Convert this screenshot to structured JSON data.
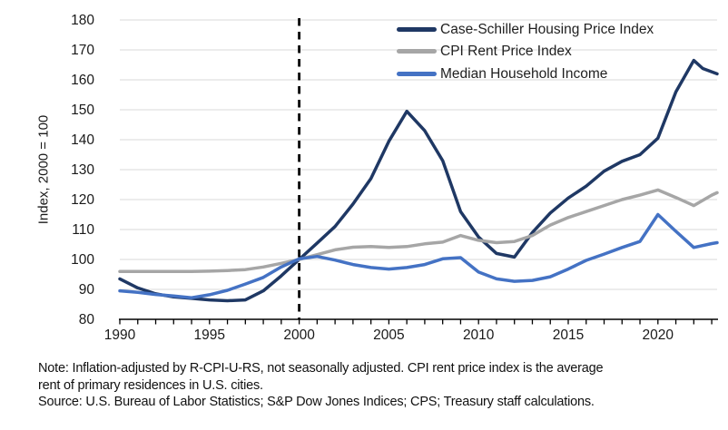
{
  "chart_data": {
    "type": "line",
    "title": "",
    "xlabel": "",
    "ylabel": "Index, 2000 = 100",
    "xlim": [
      1990,
      2023.3
    ],
    "ylim": [
      80,
      180
    ],
    "yticks": [
      80,
      90,
      100,
      110,
      120,
      130,
      140,
      150,
      160,
      170,
      180
    ],
    "xticks_labeled": [
      1990,
      1995,
      2000,
      2005,
      2010,
      2015,
      2020
    ],
    "xticks_minor_every": 1,
    "grid": "horizontal",
    "legend_position": "top-right-inside",
    "annotations": [
      {
        "type": "vline",
        "x": 2000,
        "style": "dashed",
        "color": "#000000"
      }
    ],
    "series": [
      {
        "name": "Case-Schiller Housing Price Index",
        "color": "#1F3864",
        "points": [
          [
            1990,
            93.5
          ],
          [
            1991,
            90.5
          ],
          [
            1992,
            88.5
          ],
          [
            1993,
            87.5
          ],
          [
            1994,
            87
          ],
          [
            1995,
            86.5
          ],
          [
            1996,
            86.2
          ],
          [
            1997,
            86.5
          ],
          [
            1998,
            89.5
          ],
          [
            1999,
            94.5
          ],
          [
            2000,
            100
          ],
          [
            2001,
            105.5
          ],
          [
            2002,
            111
          ],
          [
            2003,
            118.5
          ],
          [
            2004,
            127
          ],
          [
            2005,
            139.5
          ],
          [
            2006,
            149.5
          ],
          [
            2007,
            143
          ],
          [
            2008,
            133
          ],
          [
            2009,
            116
          ],
          [
            2010,
            107.5
          ],
          [
            2011,
            102
          ],
          [
            2012,
            100.8
          ],
          [
            2013,
            109
          ],
          [
            2014,
            115.5
          ],
          [
            2015,
            120.5
          ],
          [
            2016,
            124.5
          ],
          [
            2017,
            129.5
          ],
          [
            2018,
            132.8
          ],
          [
            2019,
            135
          ],
          [
            2020,
            140.5
          ],
          [
            2021,
            156
          ],
          [
            2022,
            166.5
          ],
          [
            2022.5,
            163.8
          ],
          [
            2023.3,
            162
          ]
        ]
      },
      {
        "name": "CPI Rent Price Index",
        "color": "#A6A6A6",
        "points": [
          [
            1990,
            96
          ],
          [
            1991,
            96
          ],
          [
            1992,
            96
          ],
          [
            1993,
            96
          ],
          [
            1994,
            96
          ],
          [
            1995,
            96.1
          ],
          [
            1996,
            96.3
          ],
          [
            1997,
            96.6
          ],
          [
            1998,
            97.5
          ],
          [
            1999,
            98.7
          ],
          [
            2000,
            100
          ],
          [
            2001,
            101.6
          ],
          [
            2002,
            103.2
          ],
          [
            2003,
            104.1
          ],
          [
            2004,
            104.3
          ],
          [
            2005,
            104
          ],
          [
            2006,
            104.3
          ],
          [
            2007,
            105.2
          ],
          [
            2008,
            105.8
          ],
          [
            2009,
            108
          ],
          [
            2010,
            106.4
          ],
          [
            2011,
            105.6
          ],
          [
            2012,
            106
          ],
          [
            2013,
            108
          ],
          [
            2014,
            111.5
          ],
          [
            2015,
            114
          ],
          [
            2016,
            116
          ],
          [
            2017,
            118
          ],
          [
            2018,
            120
          ],
          [
            2019,
            121.5
          ],
          [
            2020,
            123.2
          ],
          [
            2021,
            120.7
          ],
          [
            2022,
            118
          ],
          [
            2023,
            121.5
          ],
          [
            2023.3,
            122.3
          ]
        ]
      },
      {
        "name": "Median Household Income",
        "color": "#4472C4",
        "points": [
          [
            1990,
            89.5
          ],
          [
            1991,
            89
          ],
          [
            1992,
            88.3
          ],
          [
            1993,
            87.8
          ],
          [
            1994,
            87.2
          ],
          [
            1995,
            88.2
          ],
          [
            1996,
            89.7
          ],
          [
            1997,
            91.8
          ],
          [
            1998,
            94
          ],
          [
            1999,
            97.5
          ],
          [
            2000,
            100.2
          ],
          [
            2001,
            101
          ],
          [
            2002,
            99.8
          ],
          [
            2003,
            98.3
          ],
          [
            2004,
            97.3
          ],
          [
            2005,
            96.8
          ],
          [
            2006,
            97.3
          ],
          [
            2007,
            98.3
          ],
          [
            2008,
            100.2
          ],
          [
            2009,
            100.6
          ],
          [
            2010,
            95.8
          ],
          [
            2011,
            93.5
          ],
          [
            2012,
            92.7
          ],
          [
            2013,
            93
          ],
          [
            2014,
            94.2
          ],
          [
            2015,
            96.8
          ],
          [
            2016,
            99.7
          ],
          [
            2017,
            101.8
          ],
          [
            2018,
            104
          ],
          [
            2019,
            106
          ],
          [
            2020,
            115
          ],
          [
            2021,
            109.4
          ],
          [
            2022,
            104
          ],
          [
            2023,
            105.3
          ],
          [
            2023.3,
            105.6
          ]
        ]
      }
    ]
  },
  "notes": {
    "line1": "Note: Inflation-adjusted by R-CPI-U-RS, not seasonally adjusted. CPI rent price index is the average",
    "line2": "rent of primary residences in U.S. cities.",
    "source": "Source: U.S. Bureau of Labor Statistics; S&P Dow Jones Indices; CPS; Treasury staff calculations."
  },
  "colors": {
    "grid": "#D9D9D9",
    "axis": "#000000",
    "tick_text": "#1a1a1a"
  }
}
